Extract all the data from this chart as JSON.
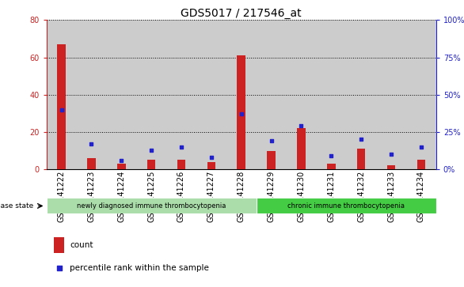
{
  "title": "GDS5017 / 217546_at",
  "samples": [
    "GSM1141222",
    "GSM1141223",
    "GSM1141224",
    "GSM1141225",
    "GSM1141226",
    "GSM1141227",
    "GSM1141228",
    "GSM1141229",
    "GSM1141230",
    "GSM1141231",
    "GSM1141232",
    "GSM1141233",
    "GSM1141234"
  ],
  "counts": [
    67,
    6,
    3,
    5,
    5,
    4,
    61,
    10,
    22,
    3,
    11,
    2,
    5
  ],
  "percentiles": [
    40,
    17,
    6,
    13,
    15,
    8,
    37,
    19,
    29,
    9,
    20,
    10,
    15
  ],
  "ylim_left": [
    0,
    80
  ],
  "ylim_right": [
    0,
    100
  ],
  "yticks_left": [
    0,
    20,
    40,
    60,
    80
  ],
  "yticks_right": [
    0,
    25,
    50,
    75,
    100
  ],
  "bar_color": "#cc2222",
  "dot_color": "#2222cc",
  "col_bg_color": "#cccccc",
  "plot_bg_color": "#ffffff",
  "group1_label": "newly diagnosed immune thrombocytopenia",
  "group2_label": "chronic immune thrombocytopenia",
  "group1_count": 7,
  "group2_count": 6,
  "group1_color": "#aaddaa",
  "group2_color": "#44cc44",
  "disease_label": "disease state",
  "legend_count": "count",
  "legend_pct": "percentile rank within the sample",
  "title_fontsize": 10,
  "tick_fontsize": 7,
  "label_fontsize": 7.5
}
